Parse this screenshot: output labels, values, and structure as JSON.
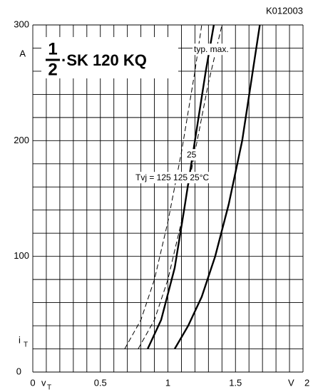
{
  "chart_data": {
    "type": "line",
    "code": "K012003",
    "title": {
      "numerator": "1",
      "denominator": "2",
      "name": "·SK 120 KQ"
    },
    "x_label": {
      "symbol": "v",
      "subscript": "T",
      "unit": "V"
    },
    "y_label": {
      "symbol": "i",
      "subscript": "T",
      "unit": "A"
    },
    "xlim": [
      0,
      2
    ],
    "ylim": [
      0,
      300
    ],
    "xticks": [
      0,
      0.5,
      1,
      1.5,
      2
    ],
    "yticks": [
      0,
      100,
      200,
      300
    ],
    "minor_xticks": [
      0.1,
      0.2,
      0.3,
      0.4,
      0.6,
      0.7,
      0.8,
      0.9,
      1.1,
      1.2,
      1.3,
      1.4,
      1.6,
      1.7,
      1.8,
      1.9
    ],
    "minor_yticks": [
      20,
      40,
      60,
      80,
      120,
      140,
      160,
      180,
      220,
      240,
      260,
      280
    ],
    "grid": true,
    "annotations": [
      {
        "text": "typ.  max."
      },
      {
        "text": "25"
      },
      {
        "text": "Tvj = 125  125  25°C"
      }
    ],
    "series": [
      {
        "name": "max 125",
        "color": "#000",
        "dashed": true,
        "x": [
          0.68,
          0.8,
          0.9,
          1.0,
          1.1,
          1.2,
          1.25
        ],
        "values": [
          20,
          45,
          80,
          130,
          190,
          260,
          300
        ]
      },
      {
        "name": "typ 125",
        "color": "#000",
        "dashed": false,
        "x": [
          0.85,
          0.95,
          1.05,
          1.12,
          1.2,
          1.28,
          1.34
        ],
        "values": [
          20,
          45,
          90,
          140,
          200,
          260,
          300
        ]
      },
      {
        "name": "max 25",
        "color": "#000",
        "dashed": true,
        "x": [
          0.78,
          0.9,
          1.0,
          1.1,
          1.2,
          1.3,
          1.4
        ],
        "values": [
          20,
          45,
          80,
          130,
          190,
          250,
          300
        ]
      },
      {
        "name": "typ 25",
        "color": "#000",
        "dashed": false,
        "x": [
          1.05,
          1.15,
          1.25,
          1.35,
          1.45,
          1.55,
          1.68
        ],
        "values": [
          20,
          40,
          65,
          100,
          145,
          200,
          300
        ]
      }
    ]
  }
}
